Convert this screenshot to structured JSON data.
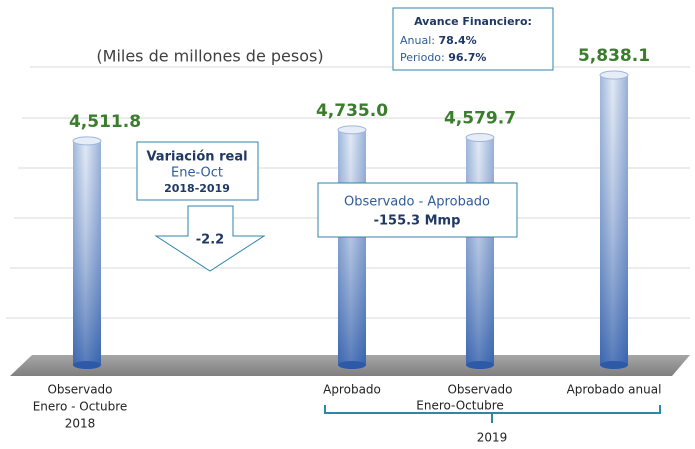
{
  "chart_data": {
    "type": "bar",
    "categories": [
      [
        "Observado",
        "Enero - Octubre",
        "2018"
      ],
      [
        "Aprobado"
      ],
      [
        "Observado"
      ],
      [
        "Aprobado anual"
      ]
    ],
    "values": [
      4511.8,
      4735.0,
      4579.7,
      5838.1
    ],
    "value_labels": [
      "4,511.8",
      "4,735.0",
      "4,579.7",
      "5,838.1"
    ],
    "color": "#3f6fb8",
    "ylim": [
      0,
      6000
    ],
    "annotations": {
      "unit": "(Miles de millones de pesos)",
      "avance": {
        "title": "Avance Financiero:",
        "anual_label": "Anual:",
        "anual_value": "78.4%",
        "periodo_label": "Periodo:",
        "periodo_value": "96.7%"
      },
      "variacion": {
        "title": "Variación real",
        "period": "Ene-Oct",
        "years": "2018-2019",
        "value": "-2.2"
      },
      "diferencia": {
        "title": "Observado - Aprobado",
        "value": "-155.3 Mmp"
      },
      "group_period": "Enero-Octubre",
      "group_year": "2019"
    }
  }
}
